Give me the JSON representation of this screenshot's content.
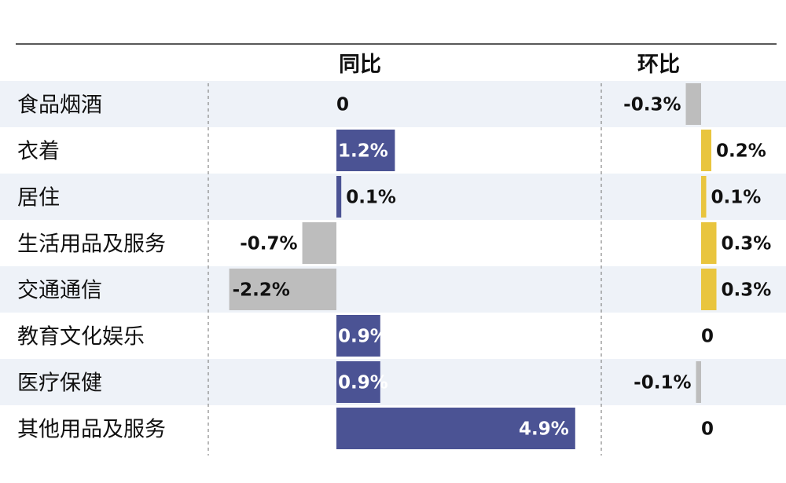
{
  "chart_data": {
    "type": "bar",
    "headers": {
      "yoy": "同比",
      "mom": "环比"
    },
    "categories": [
      "食品烟酒",
      "衣着",
      "居住",
      "生活用品及服务",
      "交通通信",
      "教育文化娱乐",
      "医疗保健",
      "其他用品及服务"
    ],
    "series": [
      {
        "name": "同比",
        "values": [
          0,
          1.2,
          0.1,
          -0.7,
          -2.2,
          0.9,
          0.9,
          4.9
        ],
        "labels": [
          "0",
          "1.2%",
          "0.1%",
          "-0.7%",
          "-2.2%",
          "0.9%",
          "0.9%",
          "4.9%"
        ]
      },
      {
        "name": "环比",
        "values": [
          -0.3,
          0.2,
          0.1,
          0.3,
          0.3,
          0,
          -0.1,
          0
        ],
        "labels": [
          "-0.3%",
          "0.2%",
          "0.1%",
          "0.3%",
          "0.3%",
          "0",
          "-0.1%",
          "0"
        ]
      }
    ],
    "colors": {
      "yoy_positive": "#4b5394",
      "mom_positive": "#e9c53e",
      "negative": "#bdbdbd",
      "row_stripe": "#eef2f8",
      "rule": "#222222",
      "divider": "#888888"
    },
    "grid": false,
    "legend": "none"
  }
}
